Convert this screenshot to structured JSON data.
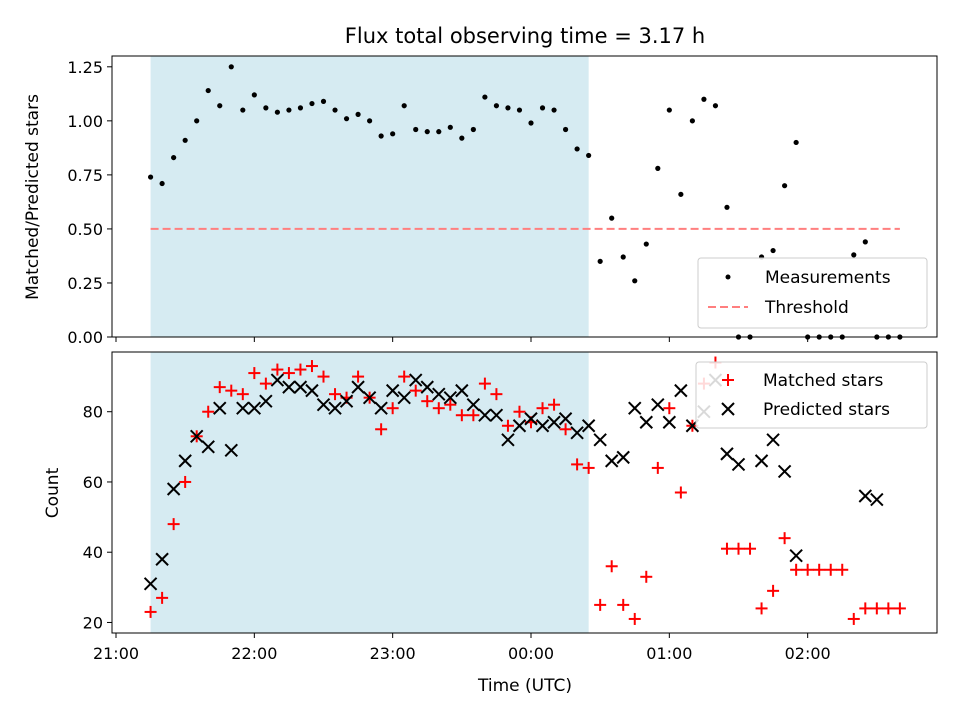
{
  "chart_data": [
    {
      "type": "scatter",
      "title": "Flux total observing time = 3.17 h",
      "ylabel": "Matched/Predicted stars",
      "xlim": [
        "21:00",
        "03:00"
      ],
      "ylim": [
        0,
        1.3
      ],
      "yticks": [
        "0.00",
        "0.25",
        "0.50",
        "0.75",
        "1.00",
        "1.25"
      ],
      "grid": false,
      "legend_position": "lower-right",
      "shaded_span": {
        "start": "21:15",
        "end": "00:25",
        "color": "#add8e6"
      },
      "threshold": {
        "name": "Threshold",
        "value": 0.5,
        "x_start": "21:15",
        "x_end": "02:40",
        "color": "#ff7f7f",
        "style": "dashed"
      },
      "series": [
        {
          "name": "Measurements",
          "color": "#000000",
          "marker": "dot",
          "x": [
            "21:15",
            "21:20",
            "21:25",
            "21:30",
            "21:35",
            "21:40",
            "21:45",
            "21:50",
            "21:55",
            "22:00",
            "22:05",
            "22:10",
            "22:15",
            "22:20",
            "22:25",
            "22:30",
            "22:35",
            "22:40",
            "22:45",
            "22:50",
            "22:55",
            "23:00",
            "23:05",
            "23:10",
            "23:15",
            "23:20",
            "23:25",
            "23:30",
            "23:35",
            "23:40",
            "23:45",
            "23:50",
            "23:55",
            "00:00",
            "00:05",
            "00:10",
            "00:15",
            "00:20",
            "00:25",
            "00:30",
            "00:35",
            "00:40",
            "00:45",
            "00:50",
            "00:55",
            "01:00",
            "01:05",
            "01:10",
            "01:15",
            "01:20",
            "01:25",
            "01:30",
            "01:35",
            "01:40",
            "01:45",
            "01:50",
            "01:55",
            "02:00",
            "02:05",
            "02:10",
            "02:15",
            "02:20",
            "02:25",
            "02:30",
            "02:35",
            "02:40"
          ],
          "y": [
            0.74,
            0.71,
            0.83,
            0.91,
            1.0,
            1.14,
            1.07,
            1.25,
            1.05,
            1.12,
            1.06,
            1.04,
            1.05,
            1.06,
            1.08,
            1.09,
            1.05,
            1.01,
            1.03,
            1.0,
            0.93,
            0.94,
            1.07,
            0.96,
            0.95,
            0.95,
            0.97,
            0.92,
            0.96,
            1.11,
            1.07,
            1.06,
            1.05,
            0.99,
            1.06,
            1.05,
            0.96,
            0.87,
            0.84,
            0.35,
            0.55,
            0.37,
            0.26,
            0.43,
            0.78,
            1.05,
            0.66,
            1.0,
            1.1,
            1.07,
            0.6,
            0.0,
            0.0,
            0.37,
            0.4,
            0.7,
            0.9,
            0.0,
            0.0,
            0.0,
            0.0,
            0.38,
            0.44,
            0.0,
            0.0,
            0.0
          ]
        }
      ]
    },
    {
      "type": "scatter",
      "xlabel": "Time (UTC)",
      "ylabel": "Count",
      "xlim": [
        "21:00",
        "03:00"
      ],
      "ylim": [
        17,
        97
      ],
      "xticks": [
        "21:00",
        "22:00",
        "23:00",
        "00:00",
        "01:00",
        "02:00"
      ],
      "yticks": [
        20,
        40,
        60,
        80
      ],
      "grid": false,
      "legend_position": "upper-right",
      "shaded_span": {
        "start": "21:15",
        "end": "00:25",
        "color": "#add8e6"
      },
      "series": [
        {
          "name": "Matched stars",
          "color": "#ff0000",
          "marker": "plus",
          "x": [
            "21:15",
            "21:20",
            "21:25",
            "21:30",
            "21:35",
            "21:40",
            "21:45",
            "21:50",
            "21:55",
            "22:00",
            "22:05",
            "22:10",
            "22:15",
            "22:20",
            "22:25",
            "22:30",
            "22:35",
            "22:40",
            "22:45",
            "22:50",
            "22:55",
            "23:00",
            "23:05",
            "23:10",
            "23:15",
            "23:20",
            "23:25",
            "23:30",
            "23:35",
            "23:40",
            "23:45",
            "23:50",
            "23:55",
            "00:00",
            "00:05",
            "00:10",
            "00:15",
            "00:20",
            "00:25",
            "00:30",
            "00:35",
            "00:40",
            "00:45",
            "00:50",
            "00:55",
            "01:00",
            "01:05",
            "01:10",
            "01:15",
            "01:20",
            "01:25",
            "01:30",
            "01:35",
            "01:40",
            "01:45",
            "01:50",
            "01:55",
            "02:00",
            "02:05",
            "02:10",
            "02:15",
            "02:20",
            "02:25",
            "02:30",
            "02:35",
            "02:40"
          ],
          "y": [
            23,
            27,
            48,
            60,
            73,
            80,
            87,
            86,
            85,
            91,
            88,
            92,
            91,
            92,
            93,
            90,
            85,
            84,
            90,
            84,
            75,
            81,
            90,
            86,
            83,
            81,
            82,
            79,
            79,
            88,
            85,
            76,
            80,
            77,
            81,
            82,
            75,
            65,
            64,
            25,
            36,
            25,
            21,
            33,
            64,
            81,
            57,
            76,
            88,
            94,
            41,
            41,
            41,
            24,
            29,
            44,
            35,
            35,
            35,
            35,
            35,
            21,
            24,
            24,
            24,
            24
          ]
        },
        {
          "name": "Predicted stars",
          "color": "#000000",
          "marker": "x",
          "x": [
            "21:15",
            "21:20",
            "21:25",
            "21:30",
            "21:35",
            "21:40",
            "21:45",
            "21:50",
            "21:55",
            "22:00",
            "22:05",
            "22:10",
            "22:15",
            "22:20",
            "22:25",
            "22:30",
            "22:35",
            "22:40",
            "22:45",
            "22:50",
            "22:55",
            "23:00",
            "23:05",
            "23:10",
            "23:15",
            "23:20",
            "23:25",
            "23:30",
            "23:35",
            "23:40",
            "23:45",
            "23:50",
            "23:55",
            "00:00",
            "00:05",
            "00:10",
            "00:15",
            "00:20",
            "00:25",
            "00:30",
            "00:35",
            "00:40",
            "00:45",
            "00:50",
            "00:55",
            "01:00",
            "01:05",
            "01:10",
            "01:15",
            "01:20",
            "01:25",
            "01:30",
            "01:40",
            "01:45",
            "01:50",
            "01:55",
            "02:25",
            "02:30"
          ],
          "y": [
            31,
            38,
            58,
            66,
            73,
            70,
            81,
            69,
            81,
            81,
            83,
            89,
            87,
            87,
            86,
            82,
            81,
            83,
            87,
            84,
            81,
            86,
            84,
            89,
            87,
            85,
            84,
            86,
            82,
            79,
            79,
            72,
            76,
            78,
            76,
            77,
            78,
            74,
            76,
            72,
            66,
            67,
            81,
            77,
            82,
            77,
            86,
            76,
            80,
            89,
            68,
            65,
            66,
            72,
            63,
            39,
            56,
            55
          ]
        }
      ]
    }
  ]
}
